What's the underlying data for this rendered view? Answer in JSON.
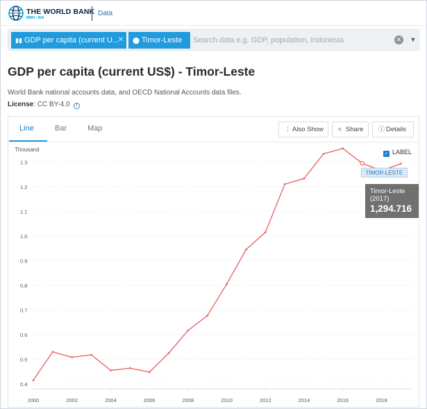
{
  "header": {
    "logo_text": "THE WORLD BANK",
    "logo_sub": "IBRD • IDA",
    "data_link": "Data"
  },
  "search": {
    "chip_indicator": "GDP per capita (current U...",
    "chip_country": "Timor-Leste",
    "placeholder": "Search data e.g. GDP, population, Indonesia"
  },
  "page": {
    "title": "GDP per capita (current US$) - Timor-Leste",
    "source": "World Bank national accounts data, and OECD National Accounts data files.",
    "license_label": "License",
    "license_value": ": CC BY-4.0"
  },
  "tabs": [
    "Line",
    "Bar",
    "Map"
  ],
  "actions": {
    "also_show": "Also Show",
    "share": "Share",
    "details": "Details"
  },
  "colors": {
    "accent": "#1f9bde",
    "line": "#e8666a"
  },
  "chart_data": {
    "type": "line",
    "ylabel": "Thousand",
    "ylim": [
      0.38,
      1.36
    ],
    "yticks": [
      "0.4",
      "0.5",
      "0.6",
      "0.7",
      "0.8",
      "0.9",
      "1.0",
      "1.1",
      "1.2",
      "1.3"
    ],
    "xticks": [
      "2000",
      "2002",
      "2004",
      "2006",
      "2008",
      "2010",
      "2012",
      "2014",
      "2016",
      "2018"
    ],
    "xlim": [
      2000,
      2019.6
    ],
    "series": [
      {
        "name": "TIMOR-LESTE",
        "x": [
          2000,
          2001,
          2002,
          2003,
          2004,
          2005,
          2006,
          2007,
          2008,
          2009,
          2010,
          2011,
          2012,
          2013,
          2014,
          2015,
          2016,
          2017,
          2018,
          2019
        ],
        "values": [
          0.415,
          0.53,
          0.508,
          0.518,
          0.455,
          0.464,
          0.448,
          0.525,
          0.617,
          0.677,
          0.805,
          0.945,
          1.015,
          1.21,
          1.233,
          1.333,
          1.355,
          1.295,
          1.265,
          1.293
        ]
      }
    ],
    "label_checkbox": "LABEL",
    "series_label": "TIMOR-LESTE",
    "tooltip": {
      "country": "Timor-Leste",
      "year": "(2017)",
      "value": "1,294.716",
      "x": 2017
    }
  }
}
